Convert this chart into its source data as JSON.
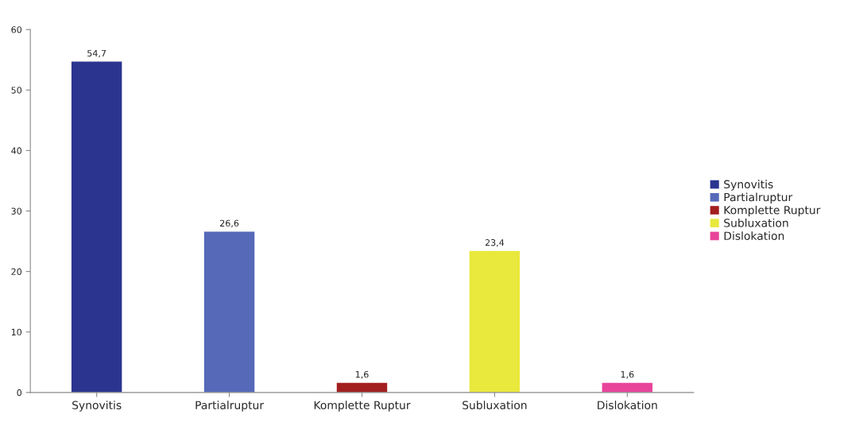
{
  "chart_data": {
    "type": "bar",
    "categories": [
      "Synovitis",
      "Partialruptur",
      "Komplette Ruptur",
      "Subluxation",
      "Dislokation"
    ],
    "series": [
      {
        "name": "Synovitis",
        "color": "#2b3590",
        "values": [
          54.7,
          null,
          null,
          null,
          null
        ],
        "value_labels": [
          "54,7",
          null,
          null,
          null,
          null
        ]
      },
      {
        "name": "Partialruptur",
        "color": "#5668b8",
        "values": [
          null,
          26.6,
          null,
          null,
          null
        ],
        "value_labels": [
          null,
          "26,6",
          null,
          null,
          null
        ]
      },
      {
        "name": "Komplette Ruptur",
        "color": "#a31f1f",
        "values": [
          null,
          null,
          1.6,
          null,
          null
        ],
        "value_labels": [
          null,
          null,
          "1,6",
          null,
          null
        ]
      },
      {
        "name": "Subluxation",
        "color": "#e9e83c",
        "values": [
          null,
          null,
          null,
          23.4,
          null
        ],
        "value_labels": [
          null,
          null,
          null,
          "23,4",
          null
        ]
      },
      {
        "name": "Dislokation",
        "color": "#e8449a",
        "values": [
          null,
          null,
          null,
          null,
          1.6
        ],
        "value_labels": [
          null,
          null,
          null,
          null,
          "1,6"
        ]
      }
    ],
    "ylim": [
      0,
      60
    ],
    "yticks": [
      0,
      10,
      20,
      30,
      40,
      50,
      60
    ],
    "grid": false,
    "legend": "right"
  }
}
